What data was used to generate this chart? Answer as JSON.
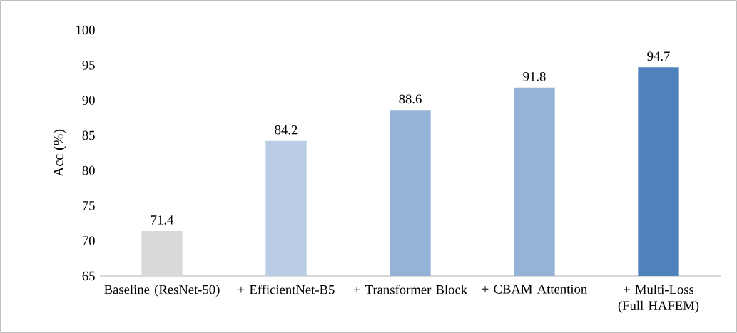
{
  "chart_data": {
    "type": "bar",
    "ylabel": "Acc (%)",
    "categories": [
      "Baseline (ResNet-50)",
      "+ EfficientNet-B5",
      "+ Transformer Block",
      "+ CBAM Attention",
      "+ Multi-Loss (Full HAFEM)"
    ],
    "values": [
      71.4,
      84.2,
      88.6,
      91.8,
      94.7
    ],
    "colors": [
      "#d9d9d9",
      "#b9cde5",
      "#95b3d7",
      "#95b3d7",
      "#4f81bd"
    ],
    "ylim": [
      65,
      100
    ],
    "yticks": [
      65,
      70,
      75,
      80,
      85,
      90,
      95,
      100
    ],
    "data_labels": true
  }
}
